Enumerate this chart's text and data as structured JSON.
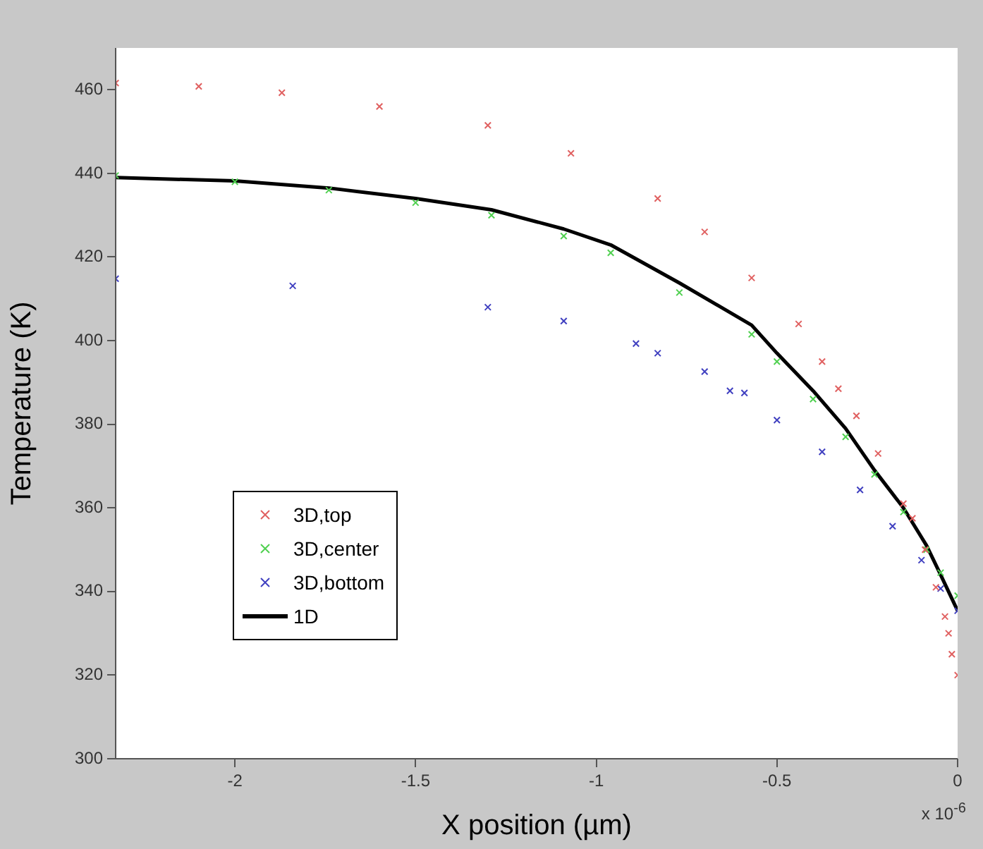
{
  "chart_data": {
    "type": "scatter",
    "xlabel": "X position (µm)",
    "ylabel": "Temperature (K)",
    "xlim": [
      -2.33,
      0
    ],
    "xticks": [
      -2,
      -1.5,
      -1,
      -0.5,
      0
    ],
    "ylim": [
      300,
      470
    ],
    "yticks": [
      300,
      320,
      340,
      360,
      380,
      400,
      420,
      440,
      460
    ],
    "legend": "bottom left",
    "marker": "cross",
    "annotations": [
      "x 10$^{-6}$"
    ],
    "series": [
      {
        "name": "3D,top",
        "color": "#e06060",
        "x": [
          -2.33,
          -2.1,
          -1.87,
          -1.6,
          -1.3,
          -1.07,
          -0.83,
          -0.7,
          -0.57,
          -0.44,
          -0.375,
          -0.33,
          -0.28,
          -0.22,
          -0.15,
          -0.125,
          -0.09,
          -0.06,
          -0.035,
          -0.025,
          -0.016,
          0
        ],
        "values": [
          461.6,
          460.8,
          459.3,
          456,
          451.5,
          444.8,
          434,
          426,
          415,
          404,
          395,
          388.5,
          382,
          373,
          361,
          357.5,
          350,
          341,
          334,
          330,
          325,
          320
        ]
      },
      {
        "name": "3D,center",
        "color": "#50d050",
        "x": [
          -2.33,
          -2.0,
          -1.74,
          -1.5,
          -1.29,
          -1.09,
          -0.96,
          -0.77,
          -0.57,
          -0.5,
          -0.4,
          -0.31,
          -0.23,
          -0.15,
          -0.086,
          -0.047,
          0
        ],
        "values": [
          439.5,
          438,
          436,
          433,
          430,
          425,
          421,
          411.5,
          401.5,
          395,
          386,
          377,
          368,
          359,
          350,
          344.5,
          339
        ]
      },
      {
        "name": "3D,bottom",
        "color": "#4040c0",
        "x": [
          -2.33,
          -1.84,
          -1.3,
          -1.09,
          -0.89,
          -0.83,
          -0.7,
          -0.63,
          -0.59,
          -0.5,
          -0.375,
          -0.27,
          -0.18,
          -0.1,
          -0.047,
          0
        ],
        "values": [
          414.8,
          413.1,
          408,
          404.7,
          399.3,
          397,
          392.6,
          388,
          387.5,
          381,
          373.4,
          364.3,
          355.6,
          347.5,
          340.7,
          335.4
        ]
      },
      {
        "name": "1D",
        "color": "#000000",
        "type": "line",
        "marker": "none",
        "x": [
          -2.33,
          -2.0,
          -1.74,
          -1.5,
          -1.29,
          -1.09,
          -0.96,
          -0.77,
          -0.57,
          -0.5,
          -0.4,
          -0.31,
          -0.23,
          -0.15,
          -0.086,
          -0.047,
          0
        ],
        "values": [
          439,
          438.2,
          436.5,
          434,
          431.3,
          426.7,
          422.9,
          413.8,
          403.7,
          397,
          388,
          379,
          369,
          360,
          351,
          344,
          335.4
        ]
      }
    ]
  }
}
